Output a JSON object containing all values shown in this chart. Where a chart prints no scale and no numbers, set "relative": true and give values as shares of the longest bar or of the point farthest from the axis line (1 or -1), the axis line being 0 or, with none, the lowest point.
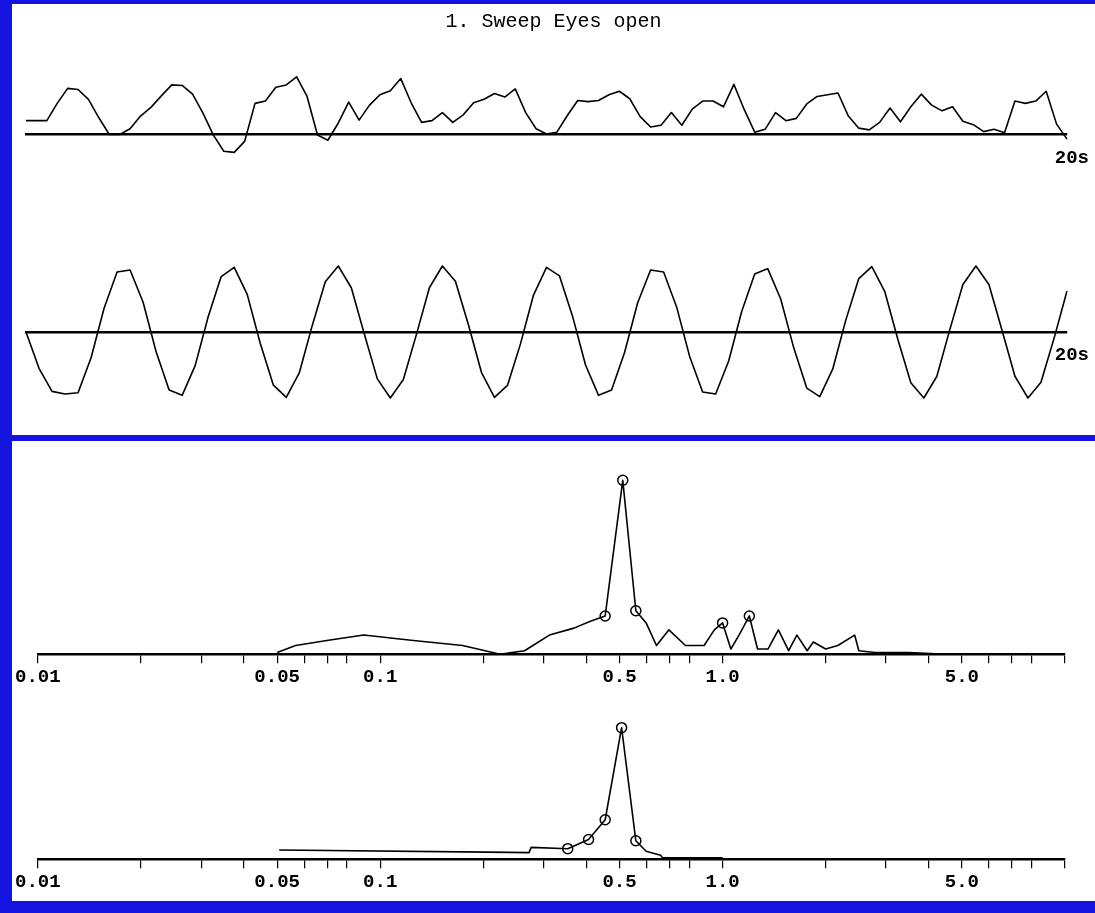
{
  "chart_data": [
    {
      "type": "line",
      "title": "1. Sweep Eyes open",
      "relative": true,
      "annotations": [
        "20s"
      ],
      "categories": [
        null,
        null,
        null,
        null,
        null,
        null,
        null,
        null,
        null,
        null,
        null,
        null,
        null,
        null,
        null,
        null,
        null,
        null,
        null,
        null,
        null,
        null,
        null,
        null,
        null,
        null,
        null,
        null,
        null,
        null,
        null,
        null,
        null,
        null,
        null,
        null,
        null,
        null,
        null,
        null,
        null,
        null,
        null,
        null,
        null,
        null,
        null,
        null,
        null,
        null,
        null,
        null,
        null,
        null,
        null,
        null,
        null,
        null,
        null,
        null,
        null,
        null,
        null,
        null,
        null,
        null,
        null,
        null,
        null,
        null,
        null,
        null,
        null,
        null,
        null,
        null,
        null,
        null,
        null,
        null,
        null,
        null,
        null,
        null,
        null,
        null,
        null,
        null,
        null,
        null,
        null,
        null,
        null,
        null,
        null,
        null,
        null,
        null,
        null,
        null,
        null
      ],
      "series": [
        {
          "color": "#000000",
          "marker": "none",
          "values": [
            0.24,
            0.24,
            0.24,
            0.54,
            0.8,
            0.78,
            0.61,
            0.29,
            0,
            0,
            0.1,
            0.32,
            0.47,
            0.67,
            0.86,
            0.85,
            0.7,
            0.37,
            -0.01,
            -0.29,
            -0.31,
            -0.12,
            0.54,
            0.58,
            0.82,
            0.86,
            1.0,
            0.66,
            -0.01,
            -0.1,
            0.2,
            0.56,
            0.25,
            0.51,
            0.69,
            0.76,
            0.97,
            0.55,
            0.21,
            0.24,
            0.38,
            0.21,
            0.34,
            0.55,
            0.61,
            0.71,
            0.65,
            0.79,
            0.38,
            0.1,
            0.01,
            0.04,
            0.33,
            0.59,
            0.57,
            0.59,
            0.69,
            0.75,
            0.62,
            0.31,
            0.13,
            0.16,
            0.38,
            0.16,
            0.44,
            0.58,
            0.58,
            0.48,
            0.87,
            0.43,
            0.04,
            0.09,
            0.38,
            0.24,
            0.28,
            0.53,
            0.66,
            0.69,
            0.72,
            0.32,
            0.11,
            0.08,
            0.21,
            0.46,
            0.22,
            0.48,
            0.7,
            0.51,
            0.41,
            0.48,
            0.23,
            0.17,
            0.05,
            0.09,
            0.03,
            0.58,
            0.54,
            0.58,
            0.75,
            0.18,
            -0.08
          ]
        }
      ]
    },
    {
      "type": "line",
      "relative": true,
      "annotations": [
        "20s"
      ],
      "categories": [
        null,
        null,
        null,
        null,
        null,
        null,
        null,
        null,
        null,
        null,
        null,
        null,
        null,
        null,
        null,
        null,
        null,
        null,
        null,
        null,
        null,
        null,
        null,
        null,
        null,
        null,
        null,
        null,
        null,
        null,
        null,
        null,
        null,
        null,
        null,
        null,
        null,
        null,
        null,
        null,
        null,
        null,
        null,
        null,
        null,
        null,
        null,
        null,
        null,
        null,
        null,
        null,
        null,
        null,
        null,
        null,
        null,
        null,
        null,
        null,
        null,
        null,
        null,
        null,
        null,
        null,
        null,
        null,
        null,
        null,
        null,
        null,
        null,
        null,
        null,
        null,
        null,
        null,
        null,
        null,
        null
      ],
      "series": [
        {
          "color": "#000000",
          "marker": "none",
          "values": [
            0,
            -0.55,
            -0.9,
            -0.94,
            -0.92,
            -0.39,
            0.36,
            0.91,
            0.94,
            0.45,
            -0.3,
            -0.88,
            -0.96,
            -0.51,
            0.23,
            0.84,
            0.98,
            0.57,
            -0.17,
            -0.8,
            -0.99,
            -0.62,
            0.1,
            0.76,
            1.0,
            0.67,
            -0.03,
            -0.71,
            -1.0,
            -0.72,
            -0.04,
            0.67,
            1.0,
            0.77,
            0.11,
            -0.61,
            -0.99,
            -0.81,
            -0.18,
            0.56,
            0.98,
            0.85,
            0.24,
            -0.5,
            -0.96,
            -0.88,
            -0.31,
            0.44,
            0.94,
            0.91,
            0.38,
            -0.37,
            -0.91,
            -0.94,
            -0.44,
            0.31,
            0.88,
            0.96,
            0.5,
            -0.24,
            -0.85,
            -0.98,
            -0.56,
            0.18,
            0.81,
            0.99,
            0.61,
            -0.11,
            -0.77,
            -1.0,
            -0.67,
            0.04,
            0.72,
            1.0,
            0.72,
            0.03,
            -0.67,
            -1.0,
            -0.76,
            -0.1,
            0.62
          ]
        }
      ]
    },
    {
      "type": "line",
      "relative": true,
      "log": "x",
      "xlim": [
        0.01,
        10
      ],
      "xticks": [
        {
          "value": 0.01,
          "label": "0.01"
        },
        {
          "value": 0.02,
          "label": null
        },
        {
          "value": 0.03,
          "label": null
        },
        {
          "value": 0.04,
          "label": null
        },
        {
          "value": 0.05,
          "label": "0.05"
        },
        {
          "value": 0.06,
          "label": null
        },
        {
          "value": 0.07,
          "label": null
        },
        {
          "value": 0.08,
          "label": null
        },
        {
          "value": 0.1,
          "label": "0.1"
        },
        {
          "value": 0.2,
          "label": null
        },
        {
          "value": 0.3,
          "label": null
        },
        {
          "value": 0.4,
          "label": null
        },
        {
          "value": 0.5,
          "label": "0.5"
        },
        {
          "value": 0.6,
          "label": null
        },
        {
          "value": 0.7,
          "label": null
        },
        {
          "value": 0.8,
          "label": null
        },
        {
          "value": 1,
          "label": "1.0"
        },
        {
          "value": 2,
          "label": null
        },
        {
          "value": 3,
          "label": null
        },
        {
          "value": 4,
          "label": null
        },
        {
          "value": 5,
          "label": "5.0"
        },
        {
          "value": 6,
          "label": null
        },
        {
          "value": 7,
          "label": null
        },
        {
          "value": 8,
          "label": null
        },
        {
          "value": 10,
          "label": null
        }
      ],
      "series": [
        {
          "color": "#000000",
          "marker": "none",
          "x": [
            0.05,
            0.0566,
            0.0706,
            0.0895,
            0.123,
            0.174,
            0.224,
            0.264,
            0.312,
            0.368,
            0.411,
            0.454,
            0.511,
            0.558,
            0.598,
            0.641,
            0.697,
            0.779,
            0.883,
            0.946,
            1.0,
            1.057,
            1.117,
            1.197,
            1.265,
            1.358,
            1.455,
            1.559,
            1.648,
            1.766,
            1.841,
            2.0,
            2.17,
            2.43,
            2.5,
            2.79,
            3.5,
            4.5
          ],
          "values": [
            0.01,
            0.05,
            0.08,
            0.11,
            0.08,
            0.05,
            0,
            0.02,
            0.11,
            0.15,
            0.19,
            0.22,
            1.0,
            0.25,
            0.18,
            0.05,
            0.14,
            0.05,
            0.05,
            0.14,
            0.18,
            0.03,
            0.11,
            0.22,
            0.03,
            0.03,
            0.14,
            0.02,
            0.11,
            0.02,
            0.07,
            0.03,
            0.05,
            0.11,
            0.02,
            0.01,
            0.01,
            0
          ]
        },
        {
          "type": "scatter",
          "color": "#000000",
          "marker": "circle",
          "x": [
            0.454,
            0.511,
            0.558,
            1.0,
            1.197
          ],
          "values": [
            0.22,
            1.0,
            0.25,
            0.18,
            0.22
          ]
        }
      ]
    },
    {
      "type": "line",
      "relative": true,
      "log": "x",
      "xlim": [
        0.01,
        10
      ],
      "xticks": [
        {
          "value": 0.01,
          "label": "0.01"
        },
        {
          "value": 0.02,
          "label": null
        },
        {
          "value": 0.03,
          "label": null
        },
        {
          "value": 0.04,
          "label": null
        },
        {
          "value": 0.05,
          "label": "0.05"
        },
        {
          "value": 0.06,
          "label": null
        },
        {
          "value": 0.07,
          "label": null
        },
        {
          "value": 0.08,
          "label": null
        },
        {
          "value": 0.1,
          "label": "0.1"
        },
        {
          "value": 0.2,
          "label": null
        },
        {
          "value": 0.3,
          "label": null
        },
        {
          "value": 0.4,
          "label": null
        },
        {
          "value": 0.5,
          "label": "0.5"
        },
        {
          "value": 0.6,
          "label": null
        },
        {
          "value": 0.7,
          "label": null
        },
        {
          "value": 0.8,
          "label": null
        },
        {
          "value": 1,
          "label": "1.0"
        },
        {
          "value": 2,
          "label": null
        },
        {
          "value": 3,
          "label": null
        },
        {
          "value": 4,
          "label": null
        },
        {
          "value": 5,
          "label": "5.0"
        },
        {
          "value": 6,
          "label": null
        },
        {
          "value": 7,
          "label": null
        },
        {
          "value": 8,
          "label": null
        },
        {
          "value": 10,
          "label": null
        }
      ],
      "series": [
        {
          "color": "#000000",
          "marker": "none",
          "x": [
            0.0507,
            0.272,
            0.276,
            0.353,
            0.406,
            0.454,
            0.507,
            0.558,
            0.598,
            0.659,
            0.668,
            1.0
          ],
          "values": [
            0.07,
            0.05,
            0.09,
            0.08,
            0.15,
            0.3,
            1.0,
            0.14,
            0.06,
            0.03,
            0.01,
            0.01
          ]
        },
        {
          "type": "scatter",
          "color": "#000000",
          "marker": "circle",
          "x": [
            0.353,
            0.406,
            0.454,
            0.507,
            0.558
          ],
          "values": [
            0.08,
            0.15,
            0.3,
            1.0,
            0.14
          ]
        }
      ]
    }
  ]
}
